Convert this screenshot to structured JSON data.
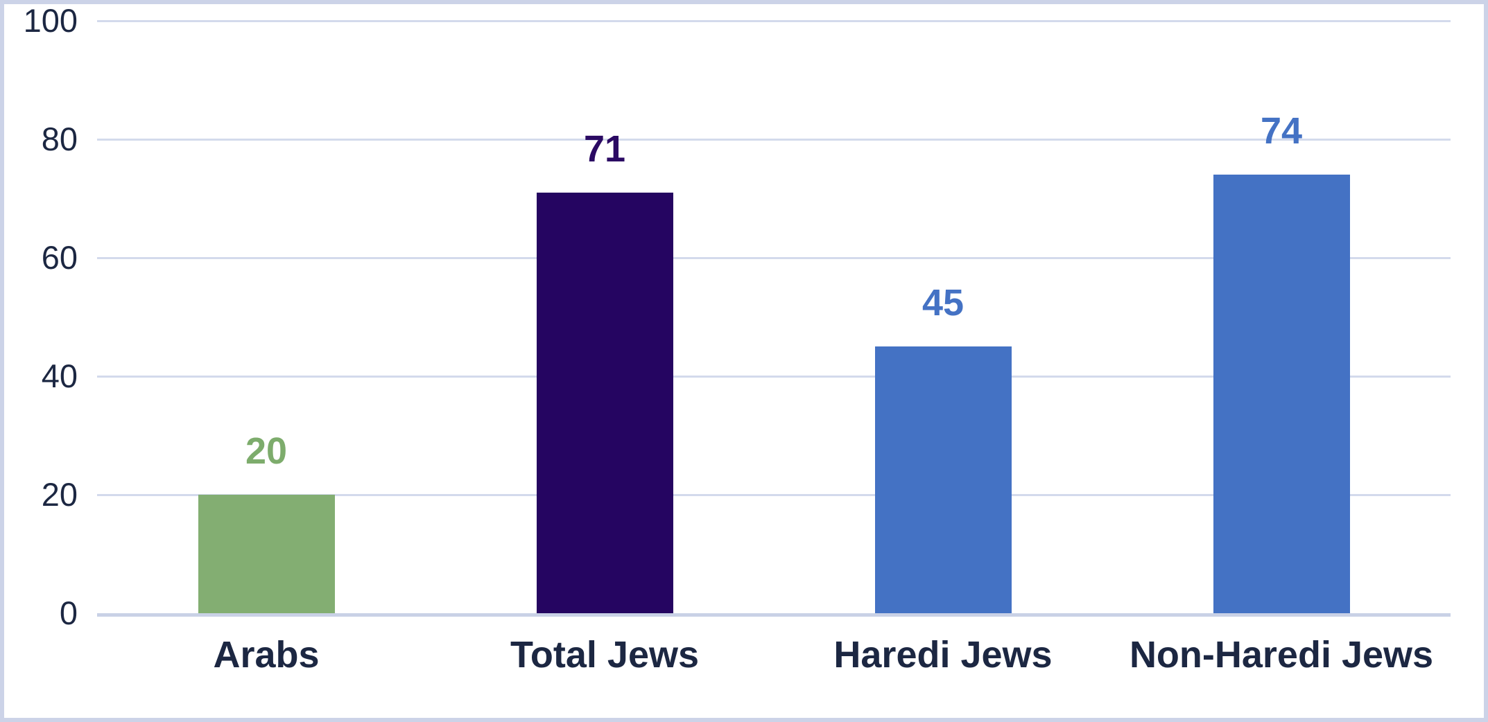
{
  "chart_data": {
    "type": "bar",
    "title": "",
    "xlabel": "",
    "ylabel": "",
    "categories": [
      "Arabs",
      "Total Jews",
      "Haredi Jews",
      "Non-Haredi Jews"
    ],
    "values": [
      20,
      71,
      45,
      74
    ],
    "bar_colors": [
      "#83ae72",
      "#250561",
      "#4472c4",
      "#4472c4"
    ],
    "value_label_colors": [
      "#7dac6c",
      "#2b0a63",
      "#4472c4",
      "#4472c4"
    ],
    "ylim": [
      0,
      100
    ],
    "yticks": [
      0,
      20,
      40,
      60,
      80,
      100
    ],
    "grid": true,
    "legend": false,
    "colors": {
      "frame_border": "#ccd3e8",
      "gridline": "#d3daec",
      "axis_baseline": "#c9d1e6",
      "tick_label": "#1c2742",
      "category_label": "#1c2742",
      "background": "#ffffff"
    }
  }
}
